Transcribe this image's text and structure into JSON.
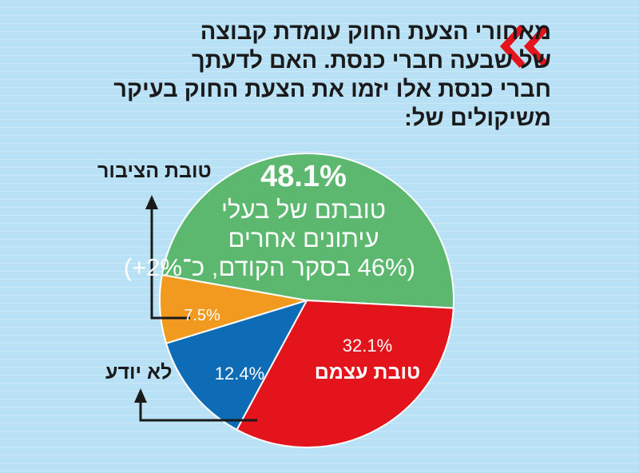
{
  "title_lines": [
    "מאחורי הצעת החוק עומדת קבוצה",
    "של שבעה חברי כנסת. האם לדעתך",
    "חברי כנסת אלו יזמו את הצעת החוק בעיקר",
    "משיקולים של:"
  ],
  "chart_data": {
    "type": "pie",
    "title": "מאחורי הצעת החוק עומדת קבוצה של שבעה חברי כנסת. האם לדעתך חברי כנסת אלו יזמו את הצעת החוק בעיקר משיקולים של:",
    "slices": [
      {
        "name": "טובתם של בעלי עיתונים אחרים",
        "value": 48.1,
        "label": "48.1%",
        "color": "#5cb86e",
        "line1": "טובתם של בעלי",
        "line2": "עיתונים אחרים",
        "note": "(46% בסקר הקודם, כ־2%+)"
      },
      {
        "name": "טובת עצמם",
        "value": 32.1,
        "label": "32.1%",
        "color": "#e3141b"
      },
      {
        "name": "לא יודע",
        "value": 12.4,
        "label": "12.4%",
        "color": "#0e6bb5"
      },
      {
        "name": "טובת הציבור",
        "value": 7.5,
        "label": "7.5%",
        "color": "#f29a1f"
      }
    ],
    "legend": "callouts"
  }
}
